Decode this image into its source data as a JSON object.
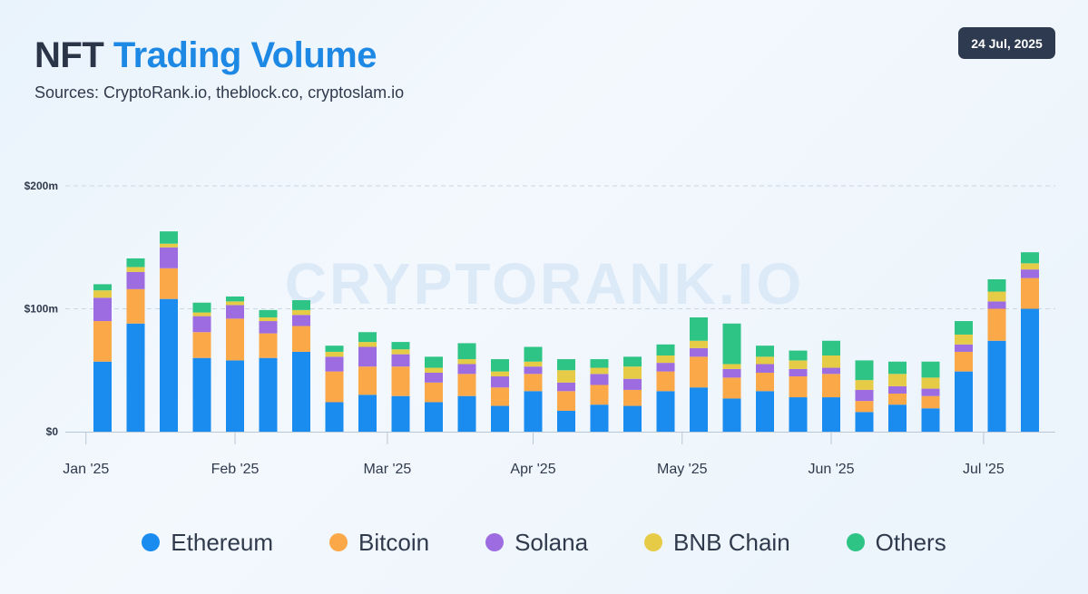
{
  "header": {
    "title_part1": "NFT",
    "title_part2": "Trading Volume",
    "subtitle": "Sources: CryptoRank.io, theblock.co, cryptoslam.io",
    "date": "24 Jul, 2025"
  },
  "watermark": "CRYPTORANK.IO",
  "colors": {
    "Ethereum": "#1a8cf0",
    "Bitcoin": "#fba849",
    "Solana": "#9c6ce0",
    "BNB Chain": "#e6cb47",
    "Others": "#2ec486"
  },
  "chart_data": {
    "type": "bar",
    "stacked": true,
    "title": "NFT Trading Volume",
    "ylabel": "",
    "xlabel": "",
    "ylim": [
      0,
      200
    ],
    "unit": "$m",
    "y_ticks": [
      {
        "value": 0,
        "label": "$0"
      },
      {
        "value": 100,
        "label": "$100m"
      },
      {
        "value": 200,
        "label": "$200m"
      }
    ],
    "x_tick_labels": [
      {
        "label": "Jan '25",
        "week_index": -0.5
      },
      {
        "label": "Feb '25",
        "week_index": 4.0
      },
      {
        "label": "Mar '25",
        "week_index": 8.6
      },
      {
        "label": "Apr '25",
        "week_index": 13.0
      },
      {
        "label": "May '25",
        "week_index": 17.5
      },
      {
        "label": "Jun '25",
        "week_index": 22.0
      },
      {
        "label": "Jul '25",
        "week_index": 26.6
      }
    ],
    "week_count": 29,
    "series": [
      {
        "name": "Ethereum",
        "values": [
          57,
          88,
          108,
          60,
          58,
          60,
          65,
          24,
          30,
          29,
          24,
          29,
          21,
          33,
          17,
          22,
          21,
          33,
          36,
          27,
          33,
          28,
          28,
          16,
          22,
          19,
          49,
          74,
          100
        ]
      },
      {
        "name": "Bitcoin",
        "values": [
          33,
          28,
          25,
          21,
          34,
          20,
          21,
          25,
          23,
          24,
          16,
          18,
          15,
          14,
          16,
          16,
          13,
          16,
          25,
          17,
          15,
          17,
          19,
          9,
          9,
          10,
          16,
          26,
          25
        ]
      },
      {
        "name": "Solana",
        "values": [
          19,
          14,
          17,
          13,
          11,
          10,
          9,
          12,
          16,
          10,
          8,
          8,
          9,
          6,
          7,
          9,
          9,
          7,
          7,
          7,
          7,
          6,
          5,
          9,
          6,
          6,
          6,
          6,
          7
        ]
      },
      {
        "name": "BNB Chain",
        "values": [
          6,
          4,
          3,
          3,
          3,
          3,
          4,
          4,
          4,
          4,
          4,
          4,
          4,
          4,
          10,
          5,
          10,
          6,
          6,
          4,
          6,
          7,
          10,
          8,
          10,
          9,
          8,
          8,
          5
        ]
      },
      {
        "name": "Others",
        "values": [
          5,
          7,
          10,
          8,
          4,
          6,
          8,
          5,
          8,
          6,
          9,
          13,
          10,
          12,
          9,
          7,
          8,
          9,
          19,
          33,
          9,
          8,
          12,
          16,
          10,
          13,
          11,
          10,
          9
        ]
      }
    ],
    "legend": [
      "Ethereum",
      "Bitcoin",
      "Solana",
      "BNB Chain",
      "Others"
    ],
    "legend_position": "bottom-center",
    "grid": true
  }
}
